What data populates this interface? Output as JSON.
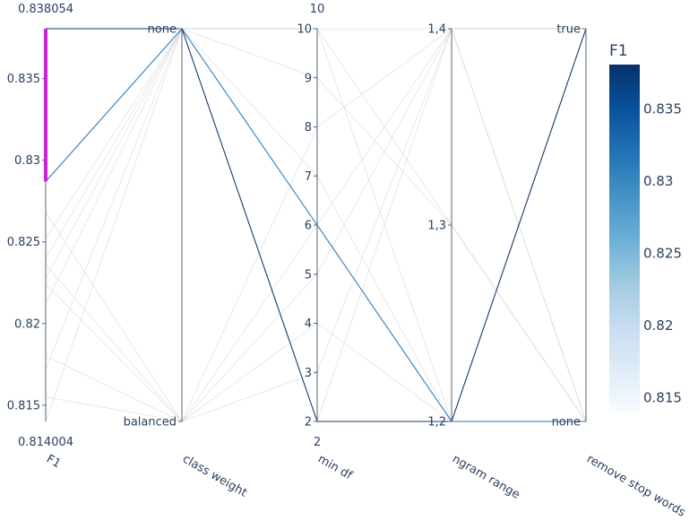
{
  "chart_data": {
    "type": "parallel_coordinates",
    "color_variable": "F1",
    "colorscale": "Blues",
    "color_range": [
      0.814004,
      0.838054
    ],
    "colorbar": {
      "title": "F1",
      "ticks": [
        "0.835",
        "0.83",
        "0.825",
        "0.82",
        "0.815"
      ],
      "tick_values": [
        0.835,
        0.83,
        0.825,
        0.82,
        0.815
      ]
    },
    "selection": {
      "dimension": "F1",
      "range": [
        0.8287,
        0.838054
      ],
      "color": "#cc22dd"
    },
    "dimensions": [
      {
        "label": "F1",
        "kind": "numeric",
        "range": [
          0.814004,
          0.838054
        ],
        "top_label": "0.838054",
        "bottom_label": "0.814004",
        "ticks": [
          "0.835",
          "0.83",
          "0.825",
          "0.82",
          "0.815"
        ],
        "tick_values": [
          0.835,
          0.83,
          0.825,
          0.82,
          0.815
        ]
      },
      {
        "label": "class weight",
        "kind": "categorical",
        "ticks": [
          "none",
          "balanced"
        ],
        "tick_values": [
          1,
          0
        ],
        "range": [
          0,
          1
        ]
      },
      {
        "label": "min df",
        "kind": "numeric",
        "range": [
          2,
          10
        ],
        "top_label": "10",
        "bottom_label": "2",
        "ticks": [
          "10",
          "9",
          "8",
          "7",
          "6",
          "5",
          "4",
          "3",
          "2"
        ],
        "tick_values": [
          10,
          9,
          8,
          7,
          6,
          5,
          4,
          3,
          2
        ]
      },
      {
        "label": "ngram range",
        "kind": "categorical",
        "ticks": [
          "1,4",
          "1,3",
          "1,2"
        ],
        "tick_values": [
          2,
          1,
          0
        ],
        "range": [
          0,
          2
        ]
      },
      {
        "label": "remove stop words",
        "kind": "categorical",
        "ticks": [
          "true",
          "none"
        ],
        "tick_values": [
          1,
          0
        ],
        "range": [
          0,
          1
        ]
      }
    ],
    "trials": [
      {
        "values": [
          0.838054,
          1,
          2,
          0,
          1
        ]
      },
      {
        "values": [
          0.8287,
          1,
          6,
          0,
          0
        ]
      },
      {
        "values": [
          0.8268,
          0,
          8,
          2,
          0
        ]
      },
      {
        "values": [
          0.8252,
          1,
          10,
          0,
          1
        ]
      },
      {
        "values": [
          0.824,
          1,
          9,
          1,
          0
        ]
      },
      {
        "values": [
          0.8236,
          0,
          6,
          2,
          0
        ]
      },
      {
        "values": [
          0.8228,
          1,
          10,
          2,
          1
        ]
      },
      {
        "values": [
          0.8224,
          0,
          3,
          2,
          1
        ]
      },
      {
        "values": [
          0.8212,
          1,
          7,
          0,
          0
        ]
      },
      {
        "values": [
          0.818,
          0,
          4,
          0,
          1
        ]
      },
      {
        "values": [
          0.8172,
          1,
          10,
          1,
          0
        ]
      },
      {
        "values": [
          0.8155,
          0,
          5,
          2,
          1
        ]
      },
      {
        "values": [
          0.814004,
          1,
          2,
          2,
          1
        ]
      }
    ]
  }
}
